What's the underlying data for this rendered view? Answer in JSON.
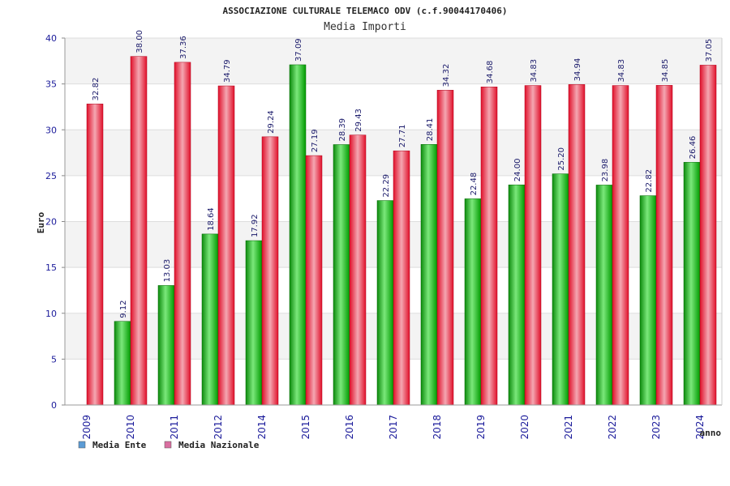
{
  "chart_data": {
    "type": "bar",
    "title": "ASSOCIAZIONE CULTURALE TELEMACO ODV (c.f.90044170406)",
    "subtitle": "Media Importi",
    "xlabel": "anno",
    "ylabel": "Euro",
    "ylim": [
      0,
      40
    ],
    "yticks": [
      0,
      5,
      10,
      15,
      20,
      25,
      30,
      35,
      40
    ],
    "categories": [
      "2009",
      "2010",
      "2011",
      "2012",
      "2014",
      "2015",
      "2016",
      "2017",
      "2018",
      "2019",
      "2020",
      "2021",
      "2022",
      "2023",
      "2024"
    ],
    "series": [
      {
        "name": "Media Ente",
        "color": "#00a000",
        "legend_color": "#5b9bd5",
        "values": [
          null,
          9.12,
          13.03,
          18.64,
          17.92,
          37.09,
          28.39,
          22.29,
          28.41,
          22.48,
          24.0,
          25.2,
          23.98,
          22.82,
          26.46
        ],
        "labels": [
          "",
          "9.12",
          "13.03",
          "18.64",
          "17.92",
          "37.09",
          "28.39",
          "22.29",
          "28.41",
          "22.48",
          "24.00",
          "25.20",
          "23.98",
          "22.82",
          "26.46"
        ]
      },
      {
        "name": "Media Nazionale",
        "color": "#e8102a",
        "legend_color": "#d96fa0",
        "values": [
          32.82,
          38.0,
          37.36,
          34.79,
          29.24,
          27.19,
          29.43,
          27.71,
          34.32,
          34.68,
          34.83,
          34.94,
          34.83,
          34.85,
          37.05
        ],
        "labels": [
          "32.82",
          "38.00",
          "37.36",
          "34.79",
          "29.24",
          "27.19",
          "29.43",
          "27.71",
          "34.32",
          "34.68",
          "34.83",
          "34.94",
          "34.83",
          "34.85",
          "37.05"
        ]
      }
    ],
    "grid": true,
    "legend_position": "bottom-left"
  }
}
